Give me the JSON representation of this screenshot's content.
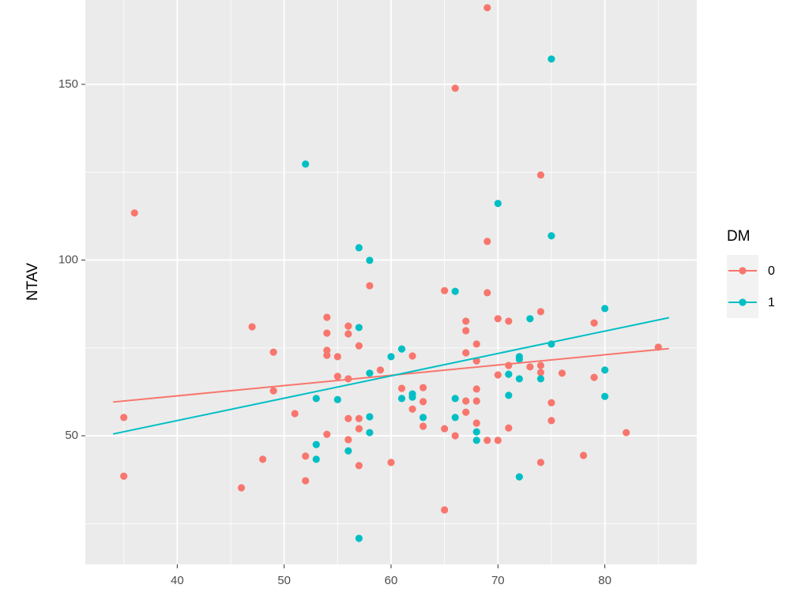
{
  "chart_data": {
    "type": "scatter",
    "y_label": "NTAV",
    "legend_title": "DM",
    "xlim": [
      31.4,
      88.6
    ],
    "ylim": [
      13.4,
      174.0
    ],
    "xticks": [
      40,
      50,
      60,
      70,
      80
    ],
    "yticks": [
      50,
      100,
      150
    ],
    "grid": true,
    "legend": "right",
    "series": [
      {
        "name": "0",
        "color": "#F8766D",
        "x": [
          35,
          35,
          36,
          46,
          47,
          48,
          49,
          49,
          51,
          52,
          52,
          54,
          54,
          54,
          54,
          54,
          55,
          55,
          56,
          56,
          56,
          56,
          56,
          57,
          57,
          57,
          57,
          58,
          59,
          60,
          61,
          62,
          62,
          63,
          63,
          63,
          65,
          65,
          65,
          66,
          66,
          67,
          67,
          67,
          67,
          67,
          68,
          68,
          68,
          68,
          68,
          69,
          69,
          69,
          69,
          70,
          70,
          70,
          71,
          71,
          71,
          74,
          74,
          74,
          74,
          74,
          73,
          75,
          75,
          76,
          78,
          79,
          79,
          82,
          85
        ],
        "values": [
          55.2,
          38.5,
          113.4,
          35.2,
          81.0,
          43.3,
          73.8,
          62.8,
          56.3,
          44.2,
          37.2,
          83.7,
          79.2,
          74.3,
          72.9,
          50.4,
          72.5,
          66.9,
          81.2,
          79.0,
          66.2,
          54.9,
          48.9,
          75.6,
          54.9,
          52.0,
          41.5,
          92.7,
          68.7,
          42.4,
          63.5,
          72.7,
          57.6,
          63.7,
          59.7,
          52.7,
          91.3,
          52.0,
          28.9,
          148.9,
          50.0,
          82.6,
          79.9,
          73.6,
          59.9,
          56.7,
          76.1,
          71.3,
          63.3,
          59.9,
          53.6,
          171.8,
          105.3,
          90.7,
          48.7,
          83.3,
          67.3,
          48.7,
          82.6,
          70.0,
          52.2,
          124.2,
          85.3,
          70.0,
          68.0,
          42.4,
          69.6,
          59.4,
          54.3,
          67.8,
          44.4,
          82.1,
          66.6,
          50.9,
          75.2
        ],
        "fit": {
          "x": [
            34,
            86
          ],
          "y": [
            59.6,
            74.8
          ]
        }
      },
      {
        "name": "1",
        "color": "#00BFC4",
        "x": [
          52,
          53,
          53,
          53,
          55,
          56,
          57,
          57,
          57,
          58,
          58,
          58,
          58,
          60,
          61,
          61,
          62,
          62,
          63,
          66,
          66,
          66,
          68,
          68,
          70,
          71,
          71,
          72,
          72,
          72,
          72,
          73,
          74,
          75,
          75,
          75,
          80,
          80,
          80
        ],
        "values": [
          127.3,
          60.6,
          47.5,
          43.3,
          60.3,
          45.7,
          103.5,
          80.8,
          20.8,
          99.9,
          67.8,
          55.4,
          50.9,
          72.5,
          74.7,
          60.6,
          61.9,
          61.0,
          55.2,
          91.1,
          60.6,
          55.2,
          51.1,
          48.7,
          116.1,
          67.5,
          61.5,
          72.5,
          71.8,
          66.2,
          38.3,
          83.3,
          66.2,
          157.2,
          106.9,
          76.1,
          86.2,
          68.7,
          61.2
        ],
        "fit": {
          "x": [
            34,
            86
          ],
          "y": [
            50.5,
            83.6
          ]
        }
      }
    ]
  }
}
